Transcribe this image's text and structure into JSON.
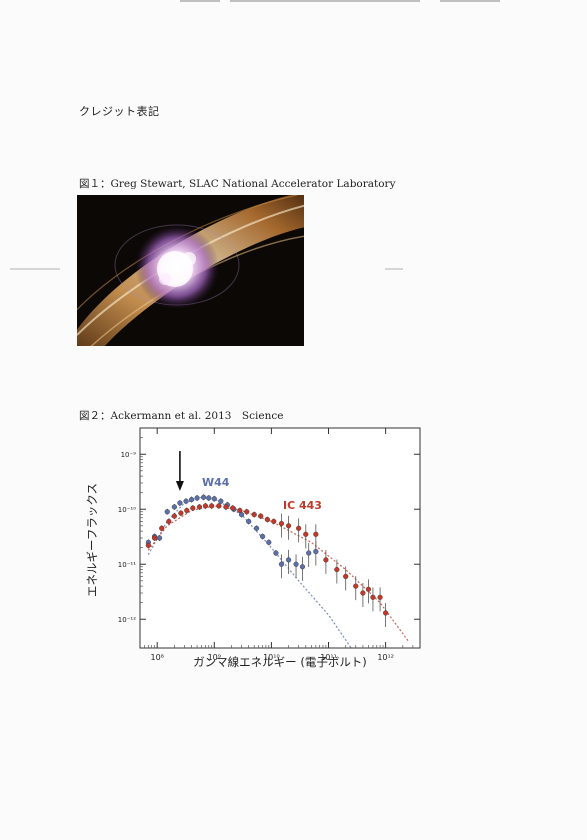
{
  "credit_heading": "クレジット表記",
  "figures": [
    {
      "caption": "図１：Greg Stewart, SLAC National Accelerator Laboratory"
    },
    {
      "caption": "図２：Ackermann et al. 2013　Science"
    }
  ],
  "colors": {
    "w44": "#5b6fa8",
    "ic443": "#c0392b",
    "frame": "#333333"
  },
  "chart_data": {
    "type": "scatter",
    "xlabel": "ガンマ線エネルギー (電子ボルト)",
    "ylabel": "エネルギーフラックス",
    "x_scale": "log",
    "y_scale": "log",
    "xlim": [
      50000000,
      4000000000000
    ],
    "ylim": [
      3e-13,
      3e-09
    ],
    "x_ticks": [
      {
        "value": 100000000,
        "label": "10⁸"
      },
      {
        "value": 1000000000,
        "label": "10⁹"
      },
      {
        "value": 10000000000,
        "label": "10¹⁰"
      },
      {
        "value": 100000000000,
        "label": "10¹¹"
      },
      {
        "value": 1000000000000,
        "label": "10¹²"
      }
    ],
    "y_ticks": [
      {
        "value": 1e-09,
        "label": "10⁻⁹"
      },
      {
        "value": 1e-10,
        "label": "10⁻¹⁰"
      },
      {
        "value": 1e-11,
        "label": "10⁻¹¹"
      },
      {
        "value": 1e-12,
        "label": "10⁻¹²"
      }
    ],
    "annotation_arrow_x": 250000000,
    "series": [
      {
        "name": "W44",
        "points": [
          [
            70000000,
            2.5e-11
          ],
          [
            90000000,
            3.2e-11
          ],
          [
            110000000,
            3e-11
          ],
          [
            150000000,
            9e-11
          ],
          [
            200000000,
            1.1e-10
          ],
          [
            250000000,
            1.3e-10
          ],
          [
            320000000,
            1.4e-10
          ],
          [
            400000000,
            1.5e-10
          ],
          [
            500000000,
            1.6e-10
          ],
          [
            650000000,
            1.65e-10
          ],
          [
            800000000,
            1.6e-10
          ],
          [
            1000000000,
            1.55e-10
          ],
          [
            1300000000,
            1.4e-10
          ],
          [
            1700000000,
            1.2e-10
          ],
          [
            2200000000,
            1e-10
          ],
          [
            3000000000,
            8e-11
          ],
          [
            4000000000,
            6e-11
          ],
          [
            5500000000,
            4.5e-11
          ],
          [
            7000000000,
            3.2e-11
          ],
          [
            9000000000,
            2.5e-11
          ],
          [
            12000000000,
            1.6e-11
          ],
          [
            15000000000,
            1e-11
          ],
          [
            20000000000,
            1.2e-11
          ],
          [
            27000000000,
            1e-11
          ],
          [
            35000000000,
            9e-12
          ],
          [
            45000000000,
            1.6e-11
          ],
          [
            60000000000,
            1.7e-11
          ]
        ],
        "model": [
          [
            70000000,
            1.5e-11
          ],
          [
            150000000,
            6e-11
          ],
          [
            300000000,
            1.3e-10
          ],
          [
            600000000,
            1.65e-10
          ],
          [
            1000000000,
            1.55e-10
          ],
          [
            3000000000,
            8e-11
          ],
          [
            10000000000,
            2e-11
          ],
          [
            30000000000,
            5e-12
          ],
          [
            100000000000,
            1.2e-12
          ],
          [
            250000000000,
            3e-13
          ]
        ]
      },
      {
        "name": "IC 443",
        "points": [
          [
            70000000,
            2.2e-11
          ],
          [
            90000000,
            3e-11
          ],
          [
            120000000,
            4.5e-11
          ],
          [
            160000000,
            6e-11
          ],
          [
            200000000,
            7.5e-11
          ],
          [
            260000000,
            8.5e-11
          ],
          [
            330000000,
            9.5e-11
          ],
          [
            420000000,
            1.05e-10
          ],
          [
            550000000,
            1.1e-10
          ],
          [
            700000000,
            1.15e-10
          ],
          [
            900000000,
            1.15e-10
          ],
          [
            1200000000,
            1.15e-10
          ],
          [
            1600000000,
            1.1e-10
          ],
          [
            2100000000,
            1.05e-10
          ],
          [
            2800000000,
            9.5e-11
          ],
          [
            3700000000,
            9e-11
          ],
          [
            5000000000,
            8e-11
          ],
          [
            6500000000,
            7.5e-11
          ],
          [
            8500000000,
            6.5e-11
          ],
          [
            11000000000,
            6e-11
          ],
          [
            15000000000,
            5.5e-11
          ],
          [
            20000000000,
            5e-11
          ],
          [
            30000000000,
            4.5e-11
          ],
          [
            40000000000,
            3.5e-11
          ],
          [
            60000000000,
            3.5e-11
          ],
          [
            90000000000,
            1.2e-11
          ],
          [
            140000000000,
            8e-12
          ],
          [
            200000000000,
            6e-12
          ],
          [
            300000000000,
            4e-12
          ],
          [
            400000000000,
            3e-12
          ],
          [
            500000000000,
            3.5e-12
          ],
          [
            600000000000,
            2.5e-12
          ],
          [
            800000000000,
            2.5e-12
          ],
          [
            1000000000000,
            1.3e-12
          ]
        ],
        "model": [
          [
            70000000,
            1.8e-11
          ],
          [
            150000000,
            5e-11
          ],
          [
            400000000,
            9.5e-11
          ],
          [
            1000000000,
            1.15e-10
          ],
          [
            3000000000,
            9.5e-11
          ],
          [
            10000000000,
            6e-11
          ],
          [
            50000000000,
            2.5e-11
          ],
          [
            200000000000,
            8e-12
          ],
          [
            800000000000,
            2e-12
          ],
          [
            2500000000000,
            4e-13
          ]
        ]
      }
    ]
  }
}
